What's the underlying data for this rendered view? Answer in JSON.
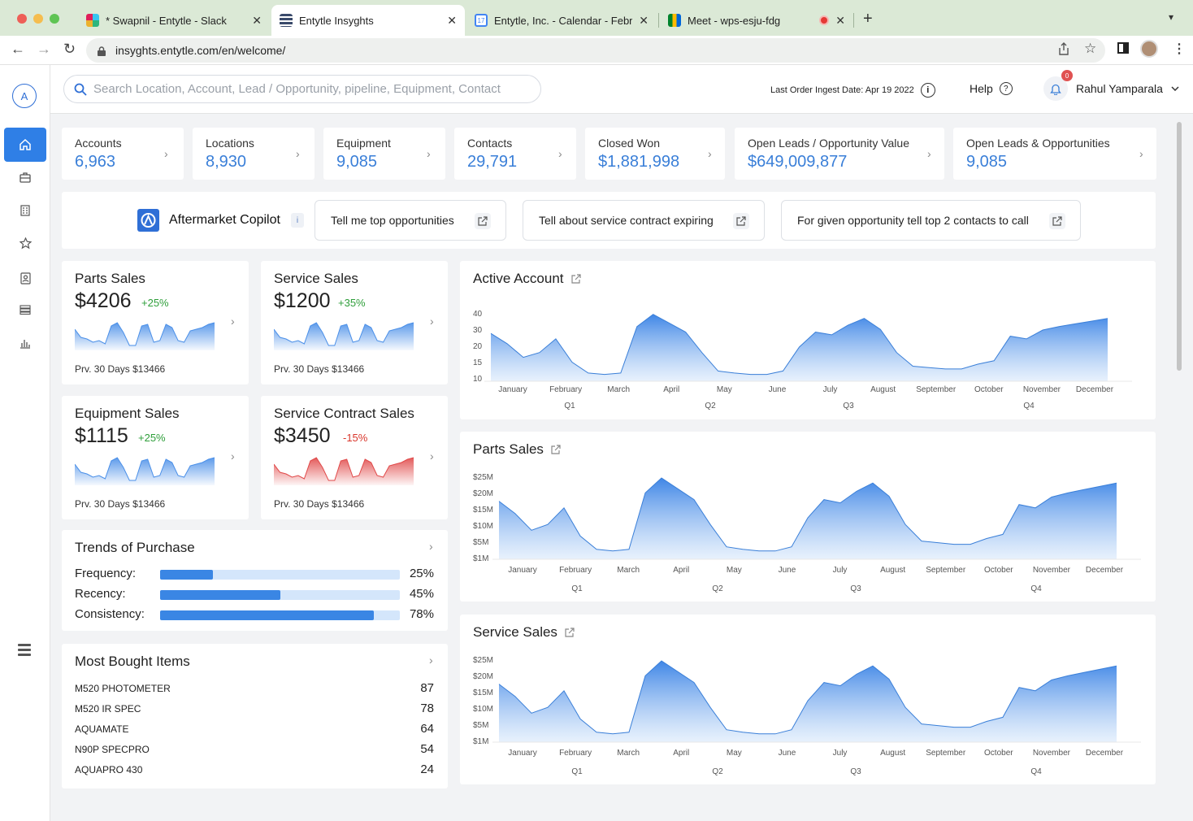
{
  "browser": {
    "tabs": [
      {
        "title": "* Swapnil - Entytle - Slack",
        "favicon": "slack-icon",
        "color": "#e01e5a"
      },
      {
        "title": "Entytle Insyghts",
        "favicon": "entytle-icon",
        "color": "#3a4a6b"
      },
      {
        "title": "Entytle, Inc. - Calendar - February",
        "favicon": "calendar-icon",
        "color": "#4285f4"
      },
      {
        "title": "Meet - wps-esju-fdg",
        "favicon": "meet-icon",
        "color": "#00897b"
      }
    ],
    "url": "insyghts.entytle.com/en/welcome/"
  },
  "header": {
    "search_placeholder": "Search Location, Account, Lead / Opportunity, pipeline, Equipment, Contact",
    "ingest_label": "Last Order Ingest Date: Apr 19 2022",
    "help_label": "Help",
    "notification_count": "0",
    "user_name": "Rahul Yamparala"
  },
  "stats": [
    {
      "label": "Accounts",
      "value": "6,963"
    },
    {
      "label": "Locations",
      "value": "8,930"
    },
    {
      "label": "Equipment",
      "value": "9,085"
    },
    {
      "label": "Contacts",
      "value": "29,791"
    },
    {
      "label": "Closed Won",
      "value": "$1,881,998"
    },
    {
      "label": "Open Leads / Opportunity Value",
      "value": "$649,009,877"
    },
    {
      "label": "Open Leads & Opportunities",
      "value": "9,085"
    }
  ],
  "copilot": {
    "title": "Aftermarket Copilot",
    "info": "i",
    "prompts": [
      "Tell me top opportunities",
      "Tell about service contract expiring",
      "For given opportunity tell top 2 contacts to call"
    ]
  },
  "mini_cards": [
    {
      "title": "Parts Sales",
      "value": "$4206",
      "delta": "+25%",
      "prev": "Prv. 30 Days $13466",
      "trend": "up"
    },
    {
      "title": "Service Sales",
      "value": "$1200",
      "delta": "+35%",
      "prev": "Prv. 30 Days $13466",
      "trend": "up"
    },
    {
      "title": "Equipment Sales",
      "value": "$1115",
      "delta": "+25%",
      "prev": "Prv. 30 Days $13466",
      "trend": "up"
    },
    {
      "title": "Service Contract Sales",
      "value": "$3450",
      "delta": "-15%",
      "prev": "Prv. 30 Days $13466",
      "trend": "down"
    }
  ],
  "trends": {
    "title": "Trends of Purchase",
    "rows": [
      {
        "label": "Frequency:",
        "value": "25%",
        "fraction": 0.22
      },
      {
        "label": "Recency:",
        "value": "45%",
        "fraction": 0.5
      },
      {
        "label": "Consistency:",
        "value": "78%",
        "fraction": 0.89
      }
    ]
  },
  "most_bought": {
    "title": "Most Bought Items",
    "items": [
      {
        "name": "M520 PHOTOMETER",
        "count": "87"
      },
      {
        "name": "M520 IR SPEC",
        "count": "78"
      },
      {
        "name": "AQUAMATE",
        "count": "64"
      },
      {
        "name": "N90P SPECPRO",
        "count": "54"
      },
      {
        "name": "AQUAPRO 430",
        "count": "24"
      }
    ]
  },
  "colors": {
    "accent": "#3a7fd8",
    "positive": "#2e9e3a",
    "negative": "#d9362b"
  },
  "chart_data": [
    {
      "type": "area",
      "title": "Active Account",
      "categories": [
        "January",
        "February",
        "March",
        "April",
        "May",
        "June",
        "July",
        "August",
        "September",
        "October",
        "November",
        "December"
      ],
      "quarters": [
        "Q1",
        "Q2",
        "Q3",
        "Q4"
      ],
      "yticks": [
        "40",
        "30",
        "20",
        "15",
        "10"
      ],
      "ylim": [
        10,
        40
      ]
    },
    {
      "type": "area",
      "title": "Parts Sales",
      "categories": [
        "January",
        "February",
        "March",
        "April",
        "May",
        "June",
        "July",
        "August",
        "September",
        "October",
        "November",
        "December"
      ],
      "quarters": [
        "Q1",
        "Q2",
        "Q3",
        "Q4"
      ],
      "yticks": [
        "$25M",
        "$20M",
        "$15M",
        "$10M",
        "$5M",
        "$1M"
      ],
      "ylim": [
        1,
        25
      ]
    },
    {
      "type": "area",
      "title": "Service Sales",
      "categories": [
        "January",
        "February",
        "March",
        "April",
        "May",
        "June",
        "July",
        "August",
        "September",
        "October",
        "November",
        "December"
      ],
      "quarters": [
        "Q1",
        "Q2",
        "Q3",
        "Q4"
      ],
      "yticks": [
        "$25M",
        "$20M",
        "$15M",
        "$10M",
        "$5M",
        "$1M"
      ],
      "ylim": [
        1,
        25
      ]
    }
  ]
}
